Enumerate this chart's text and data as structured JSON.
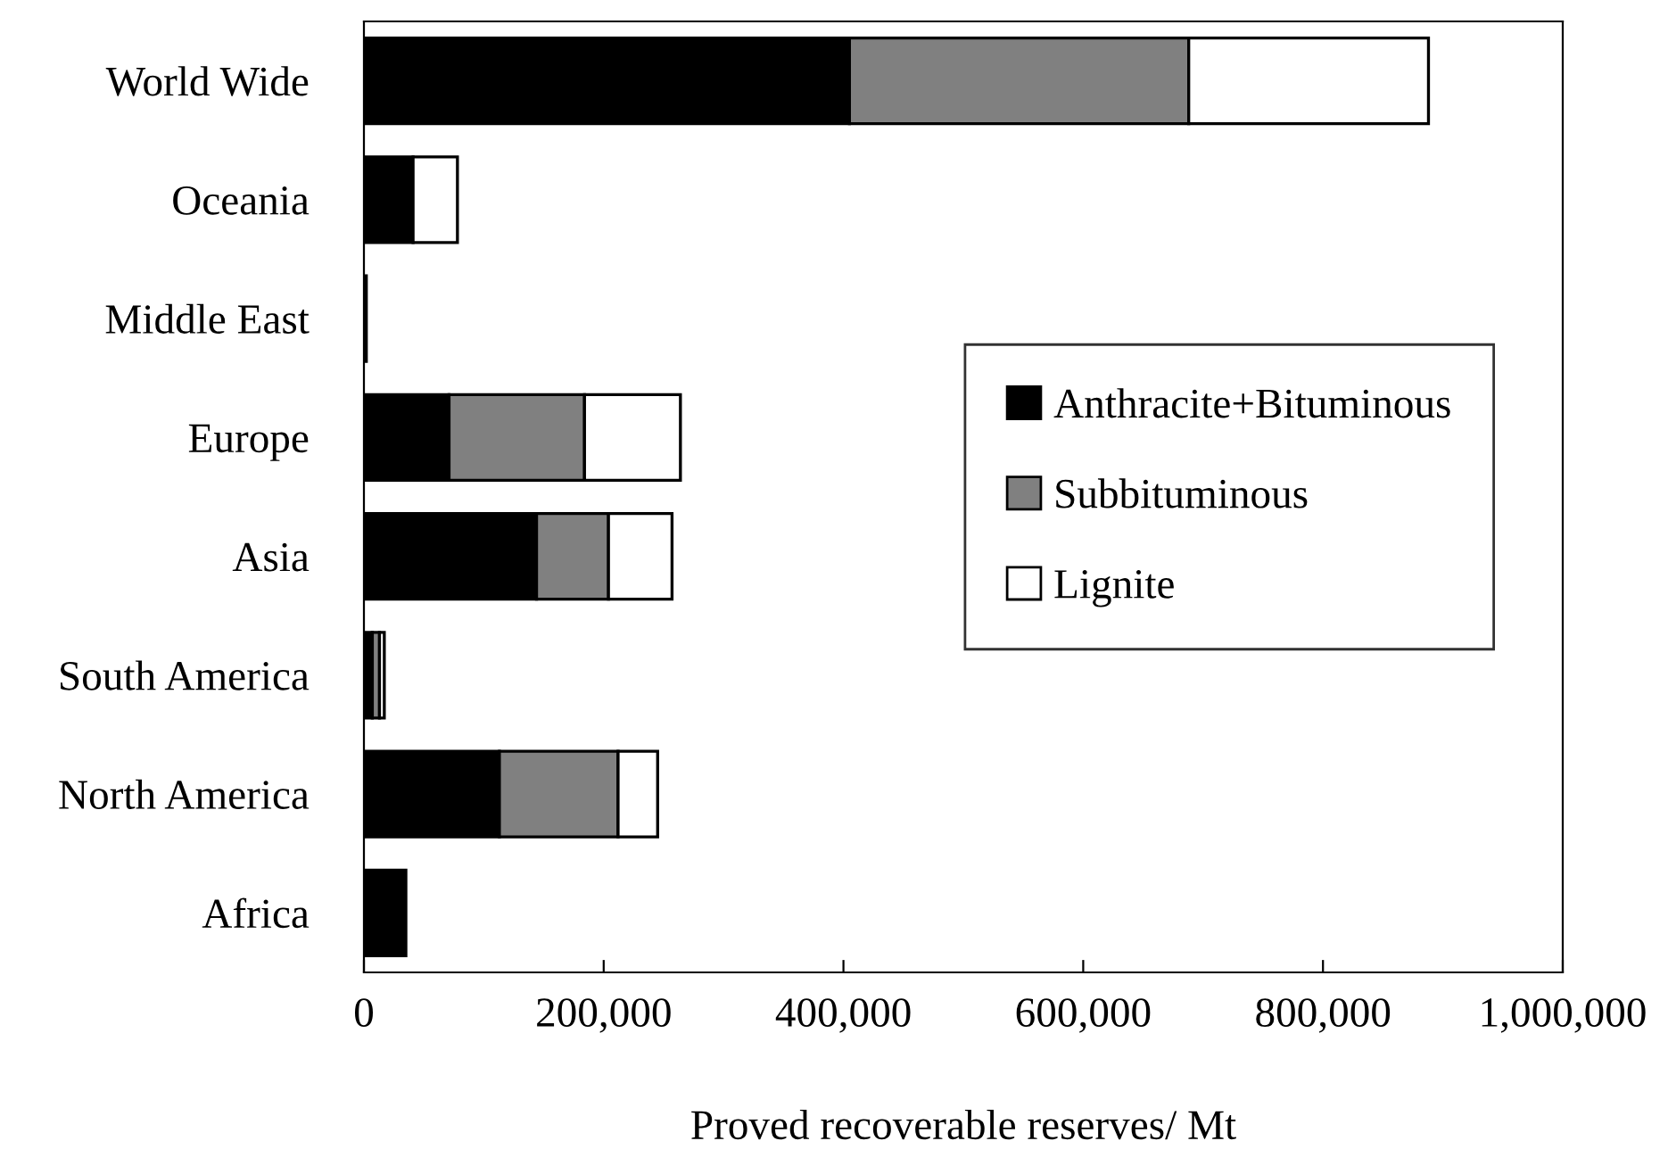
{
  "chart_data": {
    "type": "bar",
    "orientation": "horizontal",
    "stacked": true,
    "categories": [
      "World Wide",
      "Oceania",
      "Middle East",
      "Europe",
      "Asia",
      "South America",
      "North America",
      "Africa"
    ],
    "series": [
      {
        "name": "Anthracite+Bituminous",
        "color": "#000000",
        "values": [
          405000,
          41000,
          2000,
          71000,
          144000,
          7000,
          113000,
          35000
        ]
      },
      {
        "name": "Subbituminous",
        "color": "#808080",
        "values": [
          283000,
          null,
          null,
          113000,
          60000,
          6000,
          99000,
          null
        ]
      },
      {
        "name": "Lignite",
        "color": "#ffffff",
        "values": [
          200000,
          37000,
          null,
          80000,
          53000,
          4000,
          33000,
          null
        ]
      }
    ],
    "xlabel": "Proved recoverable reserves/ Mt",
    "xlim": [
      0,
      1000000
    ],
    "xticks": [
      0,
      {
        "value": 200000,
        "label": "200,000"
      },
      {
        "value": 400000,
        "label": "400,000"
      },
      {
        "value": 600000,
        "label": "600,000"
      },
      {
        "value": 800000,
        "label": "800,000"
      },
      {
        "value": 1000000,
        "label": "1,000,000"
      }
    ],
    "legend": "right",
    "grid": false
  }
}
